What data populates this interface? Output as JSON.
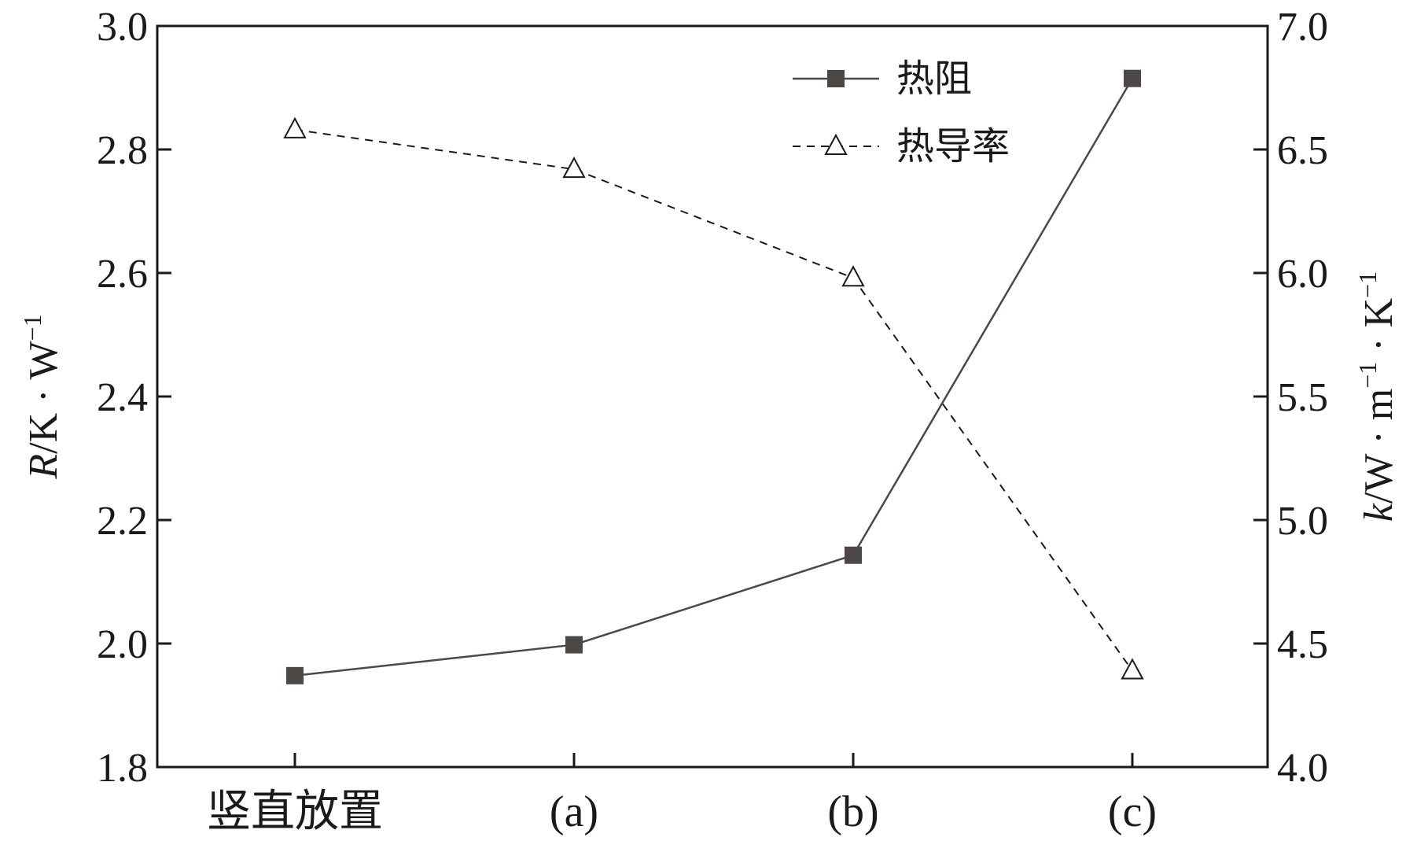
{
  "chart_data": {
    "type": "line",
    "categories": [
      "竖直放置",
      "(a)",
      "(b)",
      "(c)"
    ],
    "series": [
      {
        "name": "热阻",
        "axis": "left",
        "values": [
          1.948,
          1.998,
          2.143,
          2.915
        ],
        "marker": "filled-square",
        "line_style": "solid",
        "color": "#4d4745"
      },
      {
        "name": "热导率",
        "axis": "right",
        "values": [
          6.58,
          6.42,
          5.98,
          4.39
        ],
        "marker": "open-triangle",
        "line_style": "dashed",
        "color": "#1a1a1a"
      }
    ],
    "left_axis": {
      "label_var": "R",
      "label_unit": "/K · W",
      "label_sup": "−1",
      "range": [
        1.8,
        3.0
      ],
      "ticks": [
        "1.8",
        "2.0",
        "2.2",
        "2.4",
        "2.6",
        "2.8",
        "3.0"
      ]
    },
    "right_axis": {
      "label_var": "k",
      "label_unit_1": "/W · m",
      "label_sup_1": "−1",
      "label_unit_2": " · K",
      "label_sup_2": "−1",
      "range": [
        4.0,
        7.0
      ],
      "ticks": [
        "4.0",
        "4.5",
        "5.0",
        "5.5",
        "6.0",
        "6.5",
        "7.0"
      ]
    },
    "grid": false,
    "legend_position": "top-right"
  }
}
